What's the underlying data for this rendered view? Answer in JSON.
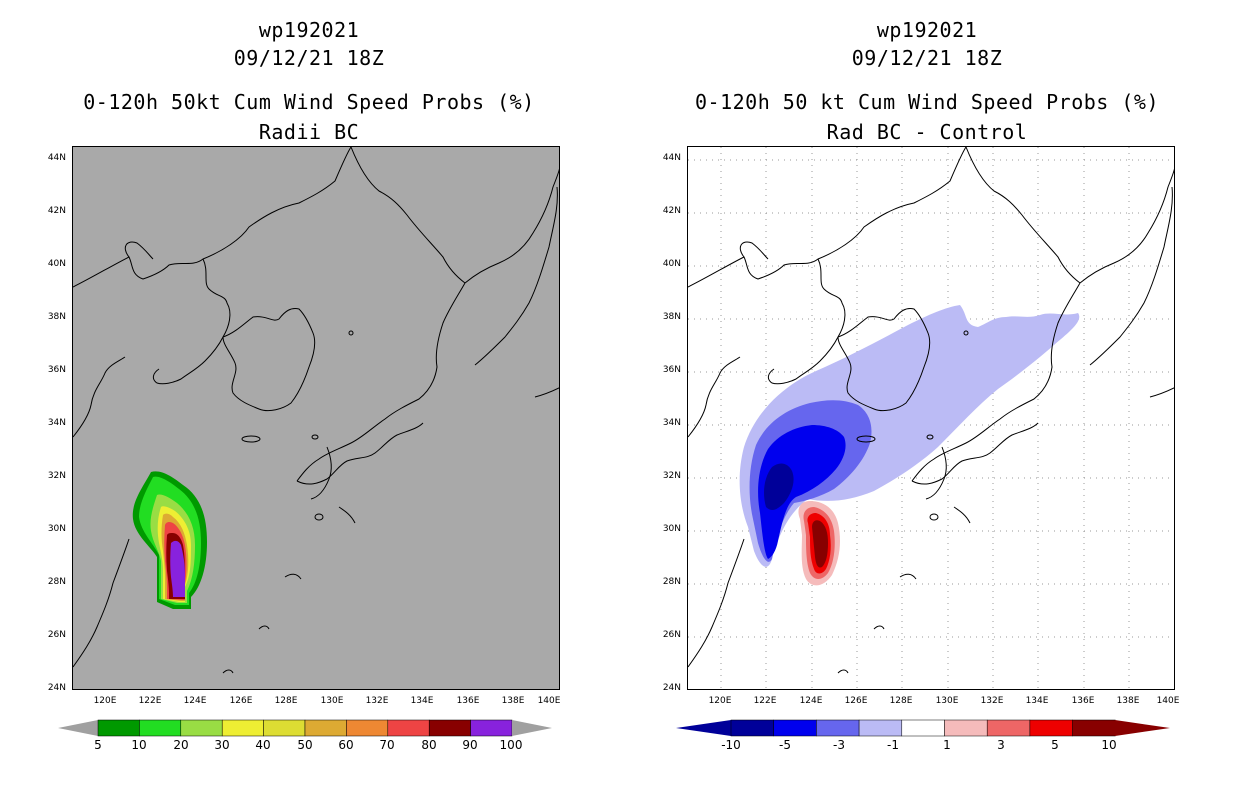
{
  "left_panel": {
    "storm_id": "wp192021",
    "datetime": "09/12/21 18Z",
    "product": "0-120h 50kt Cum Wind Speed Probs (%)",
    "subtitle": "Radii BC",
    "background_color": "#a9a9a9",
    "colorbar": {
      "colors": [
        "#009900",
        "#22dd22",
        "#99dd44",
        "#eeee33",
        "#dddd33",
        "#ddaa33",
        "#ee8833",
        "#ee4444",
        "#880000",
        "#8822dd"
      ],
      "tick_labels": [
        "5",
        "10",
        "20",
        "30",
        "40",
        "50",
        "60",
        "70",
        "80",
        "90",
        "100"
      ],
      "end_color": "#a0a0a0"
    }
  },
  "right_panel": {
    "storm_id": "wp192021",
    "datetime": "09/12/21 18Z",
    "product": "0-120h 50 kt Cum Wind Speed Probs (%)",
    "subtitle": "Rad BC - Control",
    "colorbar": {
      "colors": [
        "#000099",
        "#0000ee",
        "#6666ee",
        "#bbbbf5",
        "#ffffff",
        "#f5bbbb",
        "#ee6666",
        "#ee0000",
        "#880000"
      ],
      "tick_labels": [
        "-10",
        "-5",
        "-3",
        "-1",
        "1",
        "3",
        "5",
        "10"
      ],
      "left_end_color": "#000099",
      "right_end_color": "#880000"
    }
  },
  "axes": {
    "lat_labels": [
      "44N",
      "42N",
      "40N",
      "38N",
      "36N",
      "34N",
      "32N",
      "30N",
      "28N",
      "26N",
      "24N"
    ],
    "lon_labels": [
      "120E",
      "122E",
      "124E",
      "126E",
      "128E",
      "130E",
      "132E",
      "134E",
      "136E",
      "138E",
      "140E"
    ],
    "lat_range": [
      24,
      44.5
    ],
    "lon_range": [
      118.5,
      140
    ]
  }
}
